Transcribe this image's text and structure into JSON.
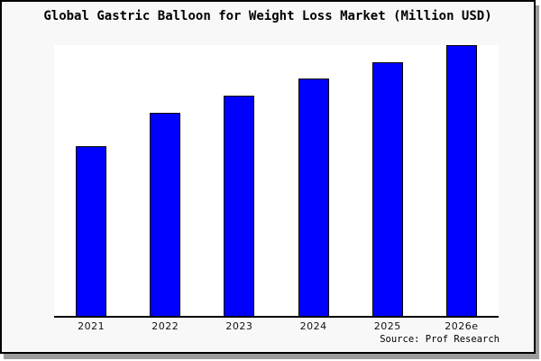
{
  "chart_data": {
    "type": "bar",
    "title": "Global Gastric Balloon for Weight Loss Market (Million USD)",
    "categories": [
      "2021",
      "2022",
      "2023",
      "2024",
      "2025",
      "2026e"
    ],
    "values_relative_pct_of_max": [
      62.7,
      75.0,
      81.3,
      87.7,
      93.7,
      100
    ],
    "note": "No y-axis or value labels shown; values estimated as bar height relative to tallest bar (2026e = 100)",
    "xlabel": "",
    "ylabel": "",
    "y_axis_shown": false,
    "gridlines": false,
    "legend": false,
    "bar_color": "#0000ff",
    "bar_edge_color": "#000000",
    "plot_background": "#ffffff",
    "figure_background": "#f8f8f9",
    "source_note": "Source: Prof Research"
  }
}
